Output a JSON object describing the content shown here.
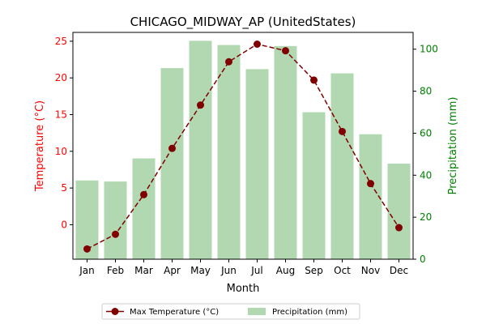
{
  "chart_data": {
    "type": "bar+line",
    "title": "CHICAGO_MIDWAY_AP (UnitedStates)",
    "xlabel": "Month",
    "categories": [
      "Jan",
      "Feb",
      "Mar",
      "Apr",
      "May",
      "Jun",
      "Jul",
      "Aug",
      "Sep",
      "Oct",
      "Nov",
      "Dec"
    ],
    "y_left": {
      "label": "Temperature (°C)",
      "lim": [
        -4.7,
        26.2
      ],
      "ticks": [
        0,
        5,
        10,
        15,
        20,
        25
      ],
      "color": "#ff0000"
    },
    "y_right": {
      "label": "Precipitation (mm)",
      "lim": [
        0,
        108
      ],
      "ticks": [
        0,
        20,
        40,
        60,
        80,
        100
      ],
      "color": "#008000"
    },
    "series": [
      {
        "name": "Max Temperature (°C)",
        "type": "line",
        "axis": "left",
        "color": "#800000",
        "values": [
          -3.3,
          -1.3,
          4.1,
          10.4,
          16.3,
          22.2,
          24.6,
          23.7,
          19.7,
          12.7,
          5.6,
          -0.4
        ]
      },
      {
        "name": "Precipitation (mm)",
        "type": "bar",
        "axis": "right",
        "color": "#b2d8b2",
        "values": [
          37.5,
          37,
          48,
          91,
          104,
          102,
          90.5,
          101.5,
          70,
          88.5,
          59.5,
          45.5
        ]
      }
    ],
    "legend": "bottom-center",
    "grid": false
  }
}
